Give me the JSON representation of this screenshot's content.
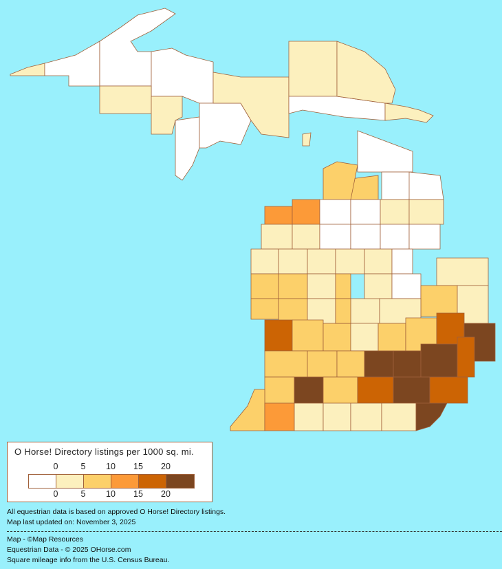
{
  "legend": {
    "title": "O Horse! Directory listings per 1000 sq. mi.",
    "ticks_top": [
      "0",
      "5",
      "10",
      "15",
      "20"
    ],
    "ticks_bottom": [
      "0",
      "5",
      "10",
      "15",
      "20"
    ],
    "class_colors": [
      "#ffffff",
      "#fcf0be",
      "#fcd06a",
      "#fc9a38",
      "#cc6404",
      "#7c4620"
    ]
  },
  "colors": {
    "background": "#99f0fc",
    "water": "#99f0fc",
    "border": "#a0603a"
  },
  "map": {
    "region": "Michigan",
    "county_levels": [
      1,
      0,
      0,
      0,
      1,
      1,
      0,
      0,
      1,
      1,
      0,
      1,
      1,
      0,
      0,
      2,
      2,
      0,
      1,
      3,
      3,
      0,
      0,
      1,
      1,
      1,
      1,
      0,
      0,
      0,
      0,
      1,
      1,
      1,
      1,
      1,
      0,
      2,
      2,
      1,
      2,
      1,
      1,
      0,
      1,
      2,
      2,
      1,
      1,
      2,
      1,
      1,
      4,
      2,
      2,
      1,
      2,
      2,
      4,
      5,
      2,
      2,
      2,
      5,
      5,
      5,
      4,
      2,
      5,
      2,
      4,
      5,
      4,
      2,
      3,
      1,
      1,
      1,
      1,
      5,
      3,
      2
    ]
  },
  "notes": {
    "line1": "All equestrian data is based on approved O Horse! Directory listings.",
    "line2": "Map last updated on: November 3, 2025",
    "credit1": "Map - ©Map Resources",
    "credit2": "Equestrian Data - © 2025 OHorse.com",
    "credit3": "Square mileage info from the U.S. Census Bureau."
  }
}
